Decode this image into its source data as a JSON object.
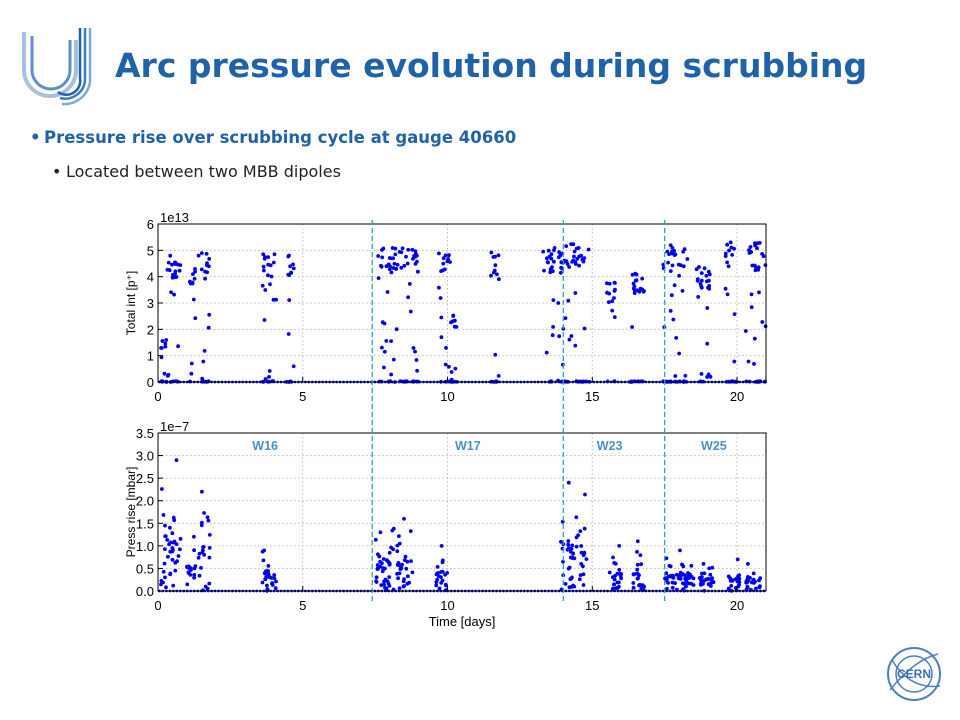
{
  "slide": {
    "title": "Arc pressure evolution during scrubbing",
    "bullet_main": "Pressure rise over scrubbing cycle at gauge 40660",
    "bullet_sub": "Located between two MBB dipoles",
    "bullet_char": "•",
    "cern_logo_text": "CERN"
  },
  "colors": {
    "title": "#1f62a8",
    "data": "#0000ee",
    "week_label": "#4a90c8",
    "marker_line": "#2aa3c8"
  },
  "chart_data": [
    {
      "type": "scatter",
      "ylabel": "Total int [p⁺]",
      "xlim": [
        0,
        21
      ],
      "ylim": [
        0,
        6
      ],
      "x_ticks": [
        0,
        5,
        10,
        15,
        20
      ],
      "y_ticks": [
        0,
        1,
        2,
        3,
        4,
        5,
        6
      ],
      "y_tick_labels": [
        "0",
        "1",
        "2",
        "3",
        "4",
        "5",
        "6"
      ],
      "scale_label": "1e13",
      "grid": true,
      "bursts": [
        {
          "x0": 0.1,
          "x1": 0.3,
          "vmax": 1.6
        },
        {
          "x0": 0.3,
          "x1": 0.8,
          "vmax": 4.8
        },
        {
          "x0": 1.1,
          "x1": 1.3,
          "vmax": 4.4
        },
        {
          "x0": 1.4,
          "x1": 1.8,
          "vmax": 4.9
        },
        {
          "x0": 3.6,
          "x1": 4.1,
          "vmax": 5.0
        },
        {
          "x0": 4.4,
          "x1": 4.7,
          "vmax": 5.0
        },
        {
          "x0": 7.6,
          "x1": 9.0,
          "vmax": 5.1
        },
        {
          "x0": 9.7,
          "x1": 10.1,
          "vmax": 4.9
        },
        {
          "x0": 10.1,
          "x1": 10.4,
          "vmax": 2.6
        },
        {
          "x0": 11.5,
          "x1": 11.8,
          "vmax": 5.0
        },
        {
          "x0": 13.3,
          "x1": 14.0,
          "vmax": 5.1
        },
        {
          "x0": 14.0,
          "x1": 14.9,
          "vmax": 5.3
        },
        {
          "x0": 15.5,
          "x1": 15.8,
          "vmax": 3.8
        },
        {
          "x0": 16.3,
          "x1": 16.8,
          "vmax": 4.2
        },
        {
          "x0": 17.4,
          "x1": 18.3,
          "vmax": 5.2
        },
        {
          "x0": 18.6,
          "x1": 19.1,
          "vmax": 4.4
        },
        {
          "x0": 19.6,
          "x1": 20.0,
          "vmax": 5.3
        },
        {
          "x0": 20.3,
          "x1": 21.0,
          "vmax": 5.3
        }
      ]
    },
    {
      "type": "scatter",
      "xlabel": "Time [days]",
      "ylabel": "Press rise [mbar]",
      "xlim": [
        0,
        21
      ],
      "ylim": [
        0,
        3.5
      ],
      "x_ticks": [
        0,
        5,
        10,
        15,
        20
      ],
      "y_ticks": [
        0,
        0.5,
        1.0,
        1.5,
        2.0,
        2.5,
        3.0,
        3.5
      ],
      "y_tick_labels": [
        "0.0",
        "0.5",
        "1.0",
        "1.5",
        "2.0",
        "2.5",
        "3.0",
        "3.5"
      ],
      "scale_label": "1e−7",
      "grid": true,
      "bursts": [
        {
          "x0": 0.1,
          "x1": 0.8,
          "vmax": 2.9
        },
        {
          "x0": 1.0,
          "x1": 1.3,
          "vmax": 1.2
        },
        {
          "x0": 1.4,
          "x1": 1.8,
          "vmax": 2.2
        },
        {
          "x0": 3.6,
          "x1": 4.1,
          "vmax": 0.9
        },
        {
          "x0": 7.5,
          "x1": 8.8,
          "vmax": 1.6
        },
        {
          "x0": 9.6,
          "x1": 10.0,
          "vmax": 1.0
        },
        {
          "x0": 13.9,
          "x1": 14.8,
          "vmax": 2.4
        },
        {
          "x0": 15.6,
          "x1": 16.0,
          "vmax": 1.0
        },
        {
          "x0": 16.4,
          "x1": 16.8,
          "vmax": 1.1
        },
        {
          "x0": 17.5,
          "x1": 18.5,
          "vmax": 0.9
        },
        {
          "x0": 18.7,
          "x1": 19.2,
          "vmax": 0.6
        },
        {
          "x0": 19.7,
          "x1": 20.1,
          "vmax": 0.7
        },
        {
          "x0": 20.3,
          "x1": 20.8,
          "vmax": 0.6
        }
      ]
    }
  ],
  "week_markers": [
    {
      "label": "W16",
      "boundary_day": 7.4,
      "label_day": 3.7
    },
    {
      "label": "W17",
      "boundary_day": 14.0,
      "label_day": 10.7
    },
    {
      "label": "W23",
      "boundary_day": 17.5,
      "label_day": 15.6
    },
    {
      "label": "W25",
      "boundary_day": null,
      "label_day": 19.2
    }
  ]
}
